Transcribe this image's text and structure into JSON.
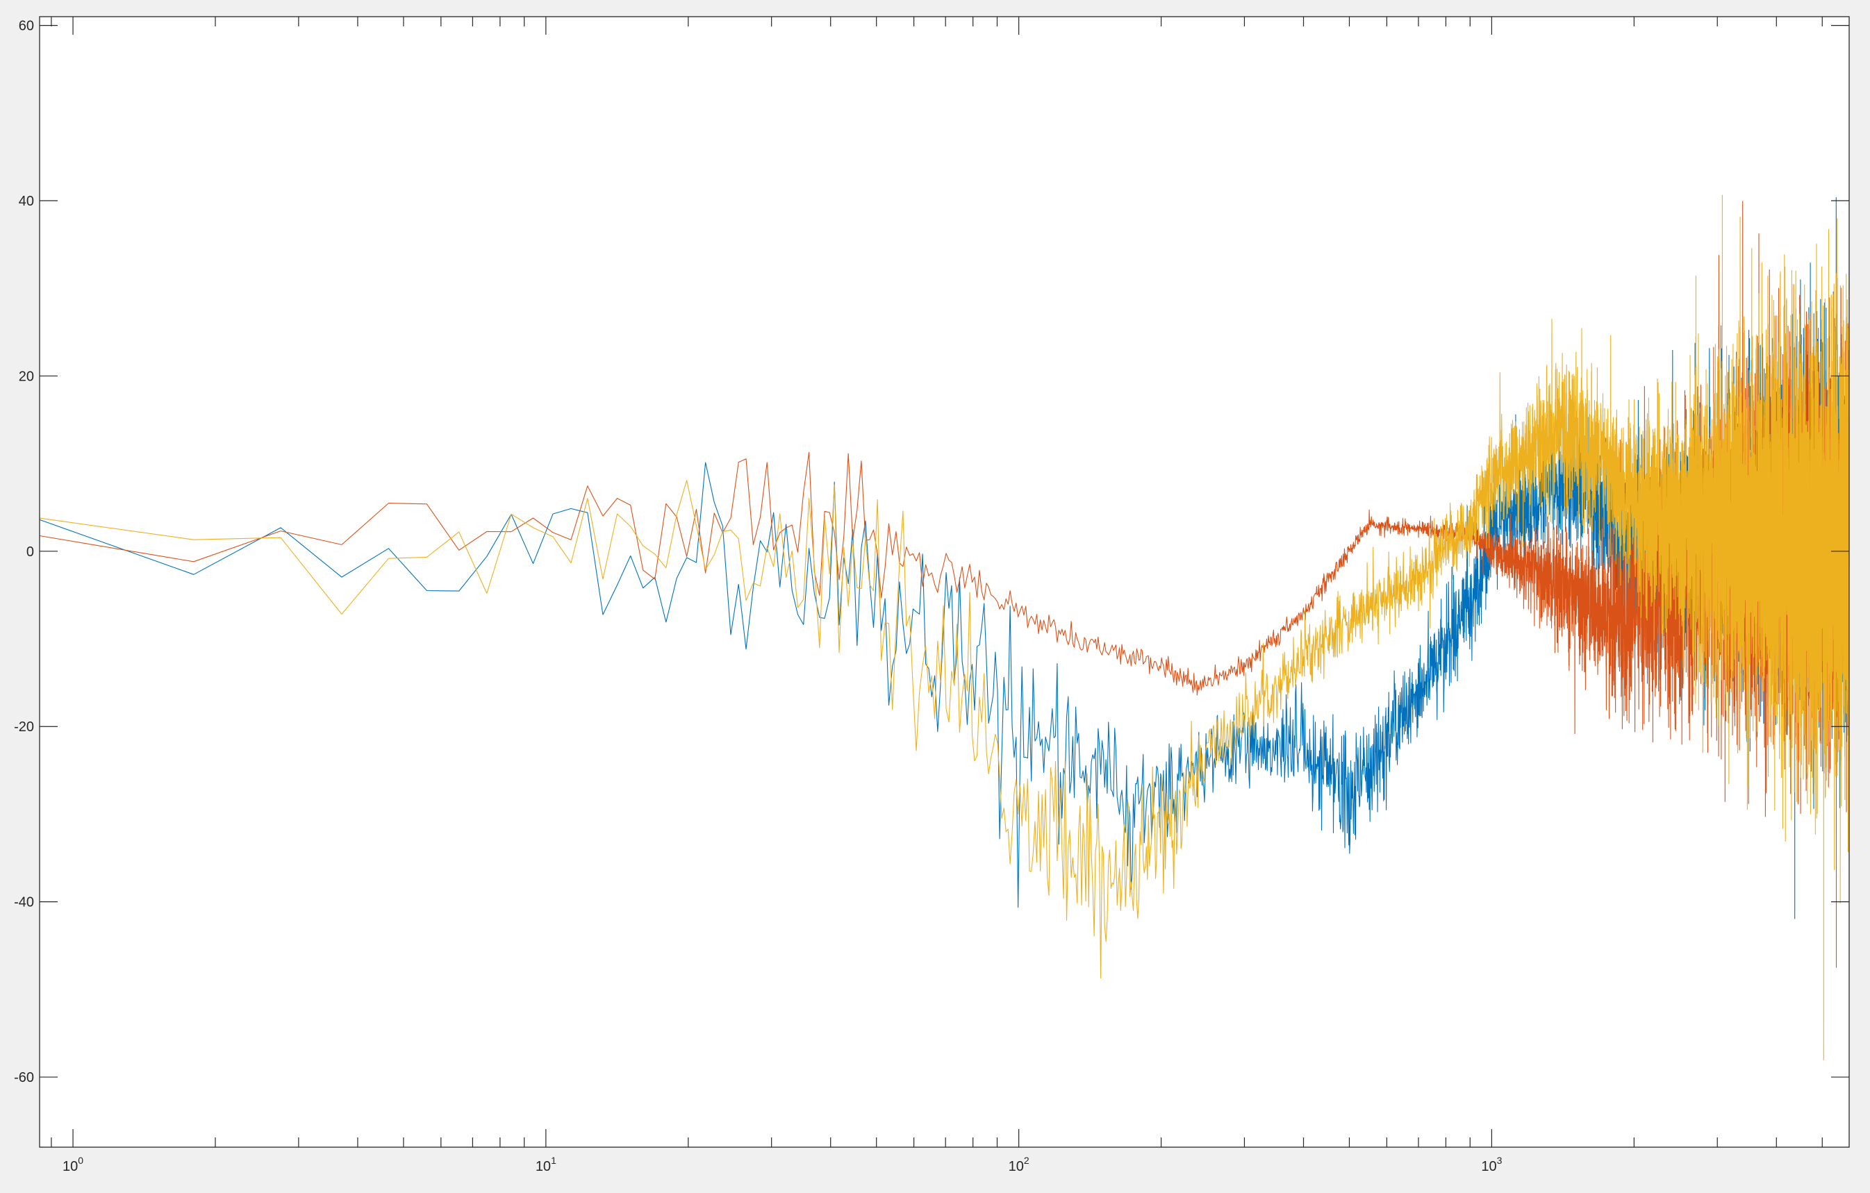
{
  "window": {
    "background_color": "#f0f0f0",
    "axes_background_color": "#ffffff",
    "axes_color": "#262626"
  },
  "chart_data": {
    "type": "line",
    "title": "",
    "xlabel": "",
    "ylabel": "",
    "x_scale": "log",
    "xlim": [
      0.85,
      5700
    ],
    "ylim": [
      -68,
      61
    ],
    "grid": false,
    "legend": "none",
    "x_ticks": [
      {
        "value": 1,
        "base": "10",
        "exp": "0"
      },
      {
        "value": 10,
        "base": "10",
        "exp": "1"
      },
      {
        "value": 100,
        "base": "10",
        "exp": "2"
      },
      {
        "value": 1000,
        "base": "10",
        "exp": "3"
      }
    ],
    "y_ticks": [
      {
        "value": 60,
        "label": "60"
      },
      {
        "value": 40,
        "label": "40"
      },
      {
        "value": 20,
        "label": "20"
      },
      {
        "value": 0,
        "label": "0"
      },
      {
        "value": -20,
        "label": "-20"
      },
      {
        "value": -40,
        "label": "-40"
      },
      {
        "value": -60,
        "label": "-60"
      }
    ],
    "series": [
      {
        "color": "#0072bd",
        "x": [
          0.85,
          1,
          1.5,
          2,
          3,
          5,
          8,
          10,
          15,
          20,
          30,
          40,
          50,
          60,
          70,
          80,
          90,
          100,
          120,
          150,
          170,
          200,
          250,
          300,
          400,
          500,
          700,
          900,
          1000,
          1200,
          1400,
          1600,
          1800,
          2000,
          2500,
          3000,
          4000,
          5000,
          5700
        ],
        "center": [
          0,
          2,
          0,
          1,
          0,
          0,
          1,
          2,
          1,
          0,
          -1,
          -3,
          -5,
          -9,
          -13,
          -16,
          -18,
          -20,
          -22,
          -26,
          -30,
          -28,
          -24,
          -22,
          -22,
          -28,
          -16,
          -6,
          2,
          5,
          8,
          7,
          2,
          0,
          0,
          1,
          2,
          3,
          2
        ],
        "spread": [
          7,
          8,
          7,
          7,
          7,
          7,
          8,
          9,
          9,
          9,
          9,
          10,
          11,
          11,
          11,
          10,
          9,
          8,
          7,
          6,
          6,
          5,
          4,
          4,
          5,
          6,
          5,
          5,
          5,
          5,
          5,
          6,
          7,
          8,
          10,
          13,
          16,
          18,
          18
        ]
      },
      {
        "color": "#d95319",
        "x": [
          0.85,
          1,
          1.5,
          2,
          3,
          5,
          8,
          10,
          15,
          20,
          30,
          40,
          50,
          60,
          70,
          80,
          90,
          100,
          120,
          150,
          170,
          200,
          240,
          300,
          400,
          500,
          550,
          700,
          900,
          1000,
          1200,
          1400,
          1600,
          1800,
          2000,
          2500,
          3000,
          4000,
          5000,
          5700
        ],
        "center": [
          0,
          1,
          -1,
          0,
          1,
          1,
          2,
          3,
          3,
          4,
          4,
          3,
          1,
          -1,
          -3,
          -4,
          -5,
          -7,
          -9,
          -11,
          -12,
          -13,
          -15.5,
          -13,
          -7,
          0,
          3,
          2.5,
          2,
          0,
          -2,
          -4,
          -6,
          -8,
          -7,
          -3,
          0,
          0,
          0,
          0
        ],
        "spread": [
          5,
          6,
          6,
          6,
          7,
          7,
          7,
          7,
          7,
          7,
          7,
          7,
          4,
          3,
          2.5,
          2,
          1.5,
          1.2,
          1.2,
          1.2,
          1.2,
          1.2,
          1,
          1,
          1,
          0.8,
          0.8,
          0.8,
          1,
          2,
          4,
          6,
          7,
          8,
          10,
          13,
          16,
          18,
          18,
          18
        ]
      },
      {
        "color": "#edb120",
        "x": [
          0.85,
          1,
          1.5,
          2,
          3,
          5,
          8,
          10,
          15,
          20,
          30,
          40,
          50,
          60,
          70,
          80,
          90,
          100,
          120,
          150,
          170,
          200,
          250,
          300,
          400,
          500,
          700,
          900,
          1000,
          1200,
          1400,
          1600,
          1800,
          2000,
          2500,
          3000,
          4000,
          5000,
          5700
        ],
        "center": [
          1,
          3,
          2,
          1,
          1,
          0,
          1,
          2,
          2,
          1,
          0,
          -1,
          -3,
          -10,
          -15,
          -20,
          -25,
          -30,
          -33,
          -36,
          -37,
          -33,
          -23,
          -19,
          -12,
          -8,
          -3,
          3,
          8,
          11,
          14,
          12,
          8,
          5,
          3,
          2,
          1,
          0,
          0
        ],
        "spread": [
          7,
          8,
          7,
          7,
          7,
          7,
          8,
          8,
          8,
          9,
          10,
          10,
          11,
          10,
          9,
          8,
          8,
          8,
          8,
          8,
          8,
          7,
          4,
          3,
          3,
          3,
          3,
          4,
          5,
          6,
          8,
          7,
          7,
          8,
          12,
          16,
          20,
          22,
          22
        ]
      }
    ]
  }
}
